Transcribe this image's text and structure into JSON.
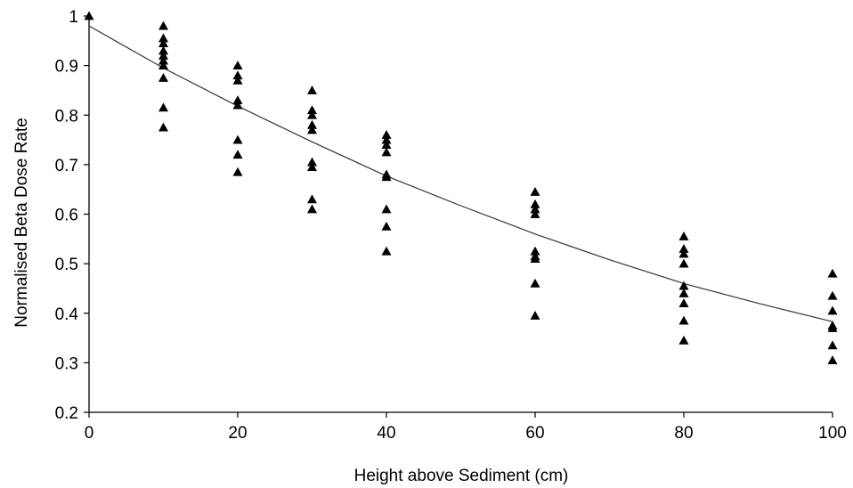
{
  "chart_data": {
    "type": "scatter",
    "title": "",
    "xlabel": "Height above Sediment (cm)",
    "ylabel": "Normalised Beta Dose Rate",
    "xlim": [
      0,
      100
    ],
    "ylim": [
      0.2,
      1.0
    ],
    "xticks": [
      0,
      20,
      40,
      60,
      80,
      100
    ],
    "xtick_labels": [
      "0",
      "20",
      "40",
      "60",
      "80",
      "100"
    ],
    "yticks": [
      0.2,
      0.3,
      0.4,
      0.5,
      0.6,
      0.7,
      0.8,
      0.9,
      1.0
    ],
    "ytick_labels": [
      "0.2",
      "0.3",
      "0.4",
      "0.5",
      "0.6",
      "0.7",
      "0.8",
      "0.9",
      "1"
    ],
    "grid": false,
    "legend": "none",
    "marker": "triangle",
    "colors": {
      "points": "#000000",
      "curve": "#333333",
      "axes": "#000000"
    },
    "points": [
      {
        "x": 0,
        "y": 1.0
      },
      {
        "x": 10,
        "y": 0.98
      },
      {
        "x": 10,
        "y": 0.955
      },
      {
        "x": 10,
        "y": 0.945
      },
      {
        "x": 10,
        "y": 0.93
      },
      {
        "x": 10,
        "y": 0.92
      },
      {
        "x": 10,
        "y": 0.91
      },
      {
        "x": 10,
        "y": 0.9
      },
      {
        "x": 10,
        "y": 0.875
      },
      {
        "x": 10,
        "y": 0.815
      },
      {
        "x": 10,
        "y": 0.775
      },
      {
        "x": 20,
        "y": 0.9
      },
      {
        "x": 20,
        "y": 0.88
      },
      {
        "x": 20,
        "y": 0.87
      },
      {
        "x": 20,
        "y": 0.83
      },
      {
        "x": 20,
        "y": 0.82
      },
      {
        "x": 20,
        "y": 0.75
      },
      {
        "x": 20,
        "y": 0.72
      },
      {
        "x": 20,
        "y": 0.685
      },
      {
        "x": 30,
        "y": 0.85
      },
      {
        "x": 30,
        "y": 0.81
      },
      {
        "x": 30,
        "y": 0.8
      },
      {
        "x": 30,
        "y": 0.78
      },
      {
        "x": 30,
        "y": 0.77
      },
      {
        "x": 30,
        "y": 0.705
      },
      {
        "x": 30,
        "y": 0.695
      },
      {
        "x": 30,
        "y": 0.63
      },
      {
        "x": 30,
        "y": 0.61
      },
      {
        "x": 40,
        "y": 0.76
      },
      {
        "x": 40,
        "y": 0.75
      },
      {
        "x": 40,
        "y": 0.74
      },
      {
        "x": 40,
        "y": 0.725
      },
      {
        "x": 40,
        "y": 0.68
      },
      {
        "x": 40,
        "y": 0.675
      },
      {
        "x": 40,
        "y": 0.61
      },
      {
        "x": 40,
        "y": 0.575
      },
      {
        "x": 40,
        "y": 0.525
      },
      {
        "x": 60,
        "y": 0.645
      },
      {
        "x": 60,
        "y": 0.62
      },
      {
        "x": 60,
        "y": 0.61
      },
      {
        "x": 60,
        "y": 0.6
      },
      {
        "x": 60,
        "y": 0.525
      },
      {
        "x": 60,
        "y": 0.515
      },
      {
        "x": 60,
        "y": 0.51
      },
      {
        "x": 60,
        "y": 0.46
      },
      {
        "x": 60,
        "y": 0.395
      },
      {
        "x": 80,
        "y": 0.555
      },
      {
        "x": 80,
        "y": 0.53
      },
      {
        "x": 80,
        "y": 0.52
      },
      {
        "x": 80,
        "y": 0.5
      },
      {
        "x": 80,
        "y": 0.455
      },
      {
        "x": 80,
        "y": 0.44
      },
      {
        "x": 80,
        "y": 0.42
      },
      {
        "x": 80,
        "y": 0.385
      },
      {
        "x": 80,
        "y": 0.345
      },
      {
        "x": 100,
        "y": 0.48
      },
      {
        "x": 100,
        "y": 0.435
      },
      {
        "x": 100,
        "y": 0.405
      },
      {
        "x": 100,
        "y": 0.375
      },
      {
        "x": 100,
        "y": 0.37
      },
      {
        "x": 100,
        "y": 0.335
      },
      {
        "x": 100,
        "y": 0.305
      }
    ],
    "fit_curve": [
      {
        "x": 0,
        "y": 0.98
      },
      {
        "x": 10,
        "y": 0.895
      },
      {
        "x": 20,
        "y": 0.818
      },
      {
        "x": 30,
        "y": 0.746
      },
      {
        "x": 40,
        "y": 0.677
      },
      {
        "x": 50,
        "y": 0.617
      },
      {
        "x": 60,
        "y": 0.56
      },
      {
        "x": 70,
        "y": 0.508
      },
      {
        "x": 80,
        "y": 0.46
      },
      {
        "x": 90,
        "y": 0.42
      },
      {
        "x": 100,
        "y": 0.383
      }
    ]
  }
}
